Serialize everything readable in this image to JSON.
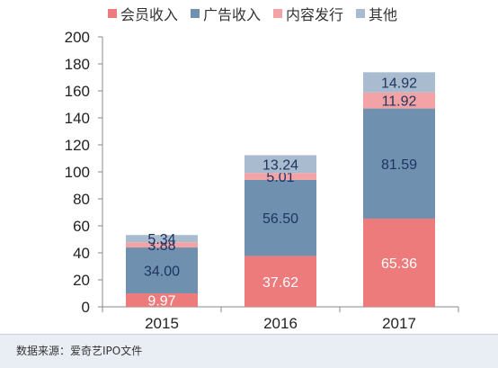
{
  "chart_data": {
    "type": "bar",
    "stacked": true,
    "categories": [
      "2015",
      "2016",
      "2017"
    ],
    "series": [
      {
        "name": "会员收入",
        "values": [
          9.97,
          37.62,
          65.36
        ],
        "color": "#ee7b7b"
      },
      {
        "name": "广告收入",
        "values": [
          34.0,
          56.5,
          81.59
        ],
        "color": "#7090b0"
      },
      {
        "name": "内容发行",
        "values": [
          3.88,
          5.01,
          11.92
        ],
        "color": "#f3a3a5"
      },
      {
        "name": "其他",
        "values": [
          5.34,
          13.24,
          14.92
        ],
        "color": "#a9bccf"
      }
    ],
    "data_labels": [
      [
        "9.97",
        "37.62",
        "65.36"
      ],
      [
        "34.00",
        "56.50",
        "81.59"
      ],
      [
        "3.88",
        "5.01",
        "11.92"
      ],
      [
        "5.34",
        "13.24",
        "14.92"
      ]
    ],
    "ylim": [
      0,
      200
    ],
    "yticks": [
      "0",
      "20",
      "40",
      "60",
      "80",
      "100",
      "120",
      "140",
      "160",
      "180",
      "200"
    ],
    "grid": false,
    "legend_position": "top"
  },
  "legend": [
    {
      "label": "会员收入",
      "color": "#ee7b7b"
    },
    {
      "label": "广告收入",
      "color": "#7090b0"
    },
    {
      "label": "内容发行",
      "color": "#f3a3a5"
    },
    {
      "label": "其他",
      "color": "#a9bccf"
    }
  ],
  "source": "数据来源：爱奇艺IPO文件"
}
